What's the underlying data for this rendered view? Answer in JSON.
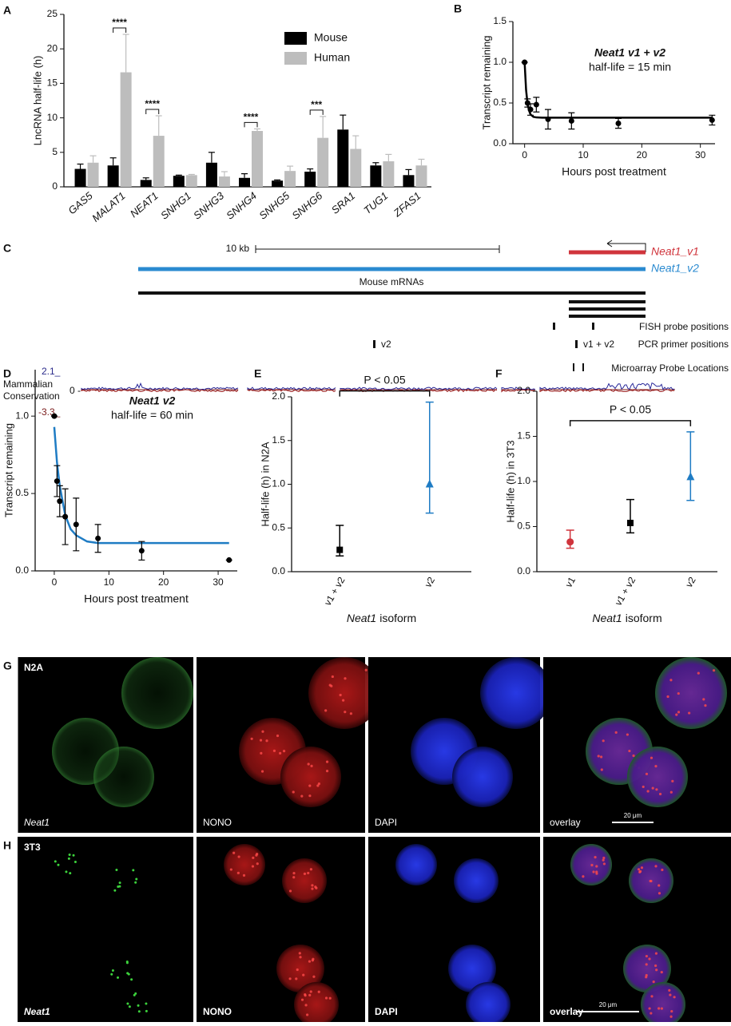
{
  "chart_data": [
    {
      "panel": "A",
      "type": "bar",
      "ylabel": "LncRNA half-life (h)",
      "categories": [
        "GAS5",
        "MALAT1",
        "NEAT1",
        "SNHG1",
        "SNHG3",
        "SNHG4",
        "SNHG5",
        "SNHG6",
        "SRA1",
        "TUG1",
        "ZFAS1"
      ],
      "series": [
        {
          "name": "Mouse",
          "color": "#000000",
          "values": [
            2.6,
            3.1,
            1.0,
            1.6,
            3.5,
            1.3,
            0.9,
            2.2,
            8.3,
            3.1,
            1.7
          ],
          "errors": [
            0.7,
            1.1,
            0.3,
            0.1,
            1.5,
            0.6,
            0.1,
            0.4,
            2.1,
            0.4,
            0.8
          ]
        },
        {
          "name": "Human",
          "color": "#bdbdbd",
          "values": [
            3.5,
            16.6,
            7.4,
            1.7,
            1.5,
            8.1,
            2.3,
            7.1,
            5.5,
            3.7,
            3.1
          ],
          "errors": [
            1.0,
            5.5,
            2.9,
            0.1,
            0.7,
            0.3,
            0.7,
            3.1,
            1.9,
            1.0,
            0.9
          ]
        }
      ],
      "ylim": [
        0,
        25
      ],
      "yticks": [
        0,
        5,
        10,
        15,
        20,
        25
      ],
      "legend": "top-right",
      "annotations": [
        {
          "label": "****",
          "category": "MALAT1"
        },
        {
          "label": "****",
          "category": "NEAT1"
        },
        {
          "label": "****",
          "category": "SNHG4"
        },
        {
          "label": "***",
          "category": "SNHG6"
        }
      ]
    },
    {
      "panel": "B",
      "type": "scatter",
      "title_italic": "Neat1 v1 + v2",
      "subtitle": "half-life = 15 min",
      "xlabel": "Hours post treatment",
      "ylabel": "Transcript remaining",
      "x": [
        0,
        0.5,
        1,
        2,
        4,
        8,
        16,
        32
      ],
      "values": [
        1.0,
        0.5,
        0.42,
        0.48,
        0.3,
        0.28,
        0.25,
        0.29
      ],
      "errors": [
        0,
        0.05,
        0.07,
        0.09,
        0.12,
        0.1,
        0.06,
        0.06
      ],
      "color": "#000000",
      "fit": {
        "color": "#000000",
        "x": [
          0,
          0.25,
          0.5,
          0.75,
          1,
          1.5,
          2,
          3,
          4,
          8,
          16,
          32
        ],
        "values": [
          1.0,
          0.66,
          0.49,
          0.41,
          0.36,
          0.33,
          0.323,
          0.32,
          0.32,
          0.32,
          0.32,
          0.32
        ]
      },
      "xlim": [
        -2,
        32.5
      ],
      "xticks": [
        0,
        10,
        20,
        30
      ],
      "ylim": [
        0,
        1.5
      ],
      "yticks": [
        {
          "value": 0,
          "label": "0.0"
        },
        0.5,
        {
          "value": 1,
          "label": "1.0"
        },
        1.5
      ]
    },
    {
      "panel": "D",
      "type": "scatter",
      "title_italic": "Neat1 v2",
      "subtitle": "half-life = 60 min",
      "xlabel": "Hours post treatment",
      "ylabel": "Transcript remaining",
      "x": [
        0,
        0.5,
        1,
        2,
        4,
        8,
        16,
        32
      ],
      "values": [
        1.0,
        0.58,
        0.45,
        0.35,
        0.3,
        0.21,
        0.13,
        0.07
      ],
      "errors": [
        0,
        0.1,
        0.1,
        0.18,
        0.17,
        0.09,
        0.06,
        0
      ],
      "color": "#000000",
      "fit": {
        "color": "#1f7cc4",
        "x": [
          0,
          0.5,
          1,
          2,
          3,
          4,
          6,
          8,
          12,
          16,
          32
        ],
        "values": [
          0.93,
          0.7,
          0.55,
          0.36,
          0.27,
          0.23,
          0.19,
          0.18,
          0.18,
          0.18,
          0.18
        ]
      },
      "xlim": [
        -3.5,
        33.5
      ],
      "xticks": [
        0,
        10,
        20,
        30
      ],
      "ylim": [
        0,
        1.3
      ],
      "yticks": [
        {
          "value": 0,
          "label": "0.0"
        },
        0.5,
        {
          "value": 1,
          "label": "1.0"
        }
      ]
    },
    {
      "panel": "E",
      "type": "point",
      "ylabel": "Half-life (h) in N2A",
      "xlabel": {
        "italic": "Neat1",
        "text": "isoform"
      },
      "categories": [
        "v1 + v2",
        "v2"
      ],
      "values": [
        0.25,
        1.0
      ],
      "lower": [
        0.18,
        0.67
      ],
      "upper": [
        0.53,
        1.94
      ],
      "colors": [
        "#000000",
        "#1f7cc4"
      ],
      "markers": [
        "square",
        "triangle"
      ],
      "ylim": [
        0,
        2
      ],
      "yticks": [
        {
          "value": 0,
          "label": "0.0"
        },
        0.5,
        {
          "value": 1,
          "label": "1.0"
        },
        1.5,
        {
          "value": 2,
          "label": "2.0"
        }
      ],
      "bracket": {
        "label": "P < 0.05",
        "from": "v1 + v2",
        "to": "v2"
      }
    },
    {
      "panel": "F",
      "type": "point",
      "ylabel": "Half-life (h) in 3T3",
      "xlabel": {
        "italic": "Neat1",
        "text": "isoform"
      },
      "categories": [
        "v1",
        "v1 + v2",
        "v2"
      ],
      "values": [
        0.33,
        0.54,
        1.05
      ],
      "lower": [
        0.26,
        0.43,
        0.79
      ],
      "upper": [
        0.46,
        0.8,
        1.55
      ],
      "colors": [
        "#d0343c",
        "#000000",
        "#1f7cc4"
      ],
      "markers": [
        "circle",
        "square",
        "triangle"
      ],
      "ylim": [
        0,
        2
      ],
      "yticks": [
        {
          "value": 0,
          "label": "0.0"
        },
        0.5,
        {
          "value": 1,
          "label": "1.0"
        },
        1.5,
        {
          "value": 2,
          "label": "2.0"
        }
      ],
      "bracket": {
        "label": "P < 0.05",
        "from": "v1",
        "to": "v2"
      }
    }
  ],
  "diagram": {
    "panel": "C",
    "scale_label": "10 kb",
    "isoform1": "Neat1_v1",
    "isoform2": "Neat1_v2",
    "mrna_label": "Mouse mRNAs",
    "tracks": [
      "FISH probe positions",
      "PCR primer positions",
      "Microarray Probe Locations"
    ],
    "primer_labels": [
      "v2",
      "v1 + v2"
    ],
    "conservation": {
      "label": [
        "Mammalian",
        "Conservation"
      ],
      "max": "2.1_",
      "zero": "0 -",
      "min": "-3.3_"
    }
  },
  "images": [
    {
      "panel": "G",
      "cell_line": "N2A",
      "channels": [
        "Neat1",
        "NONO",
        "DAPI",
        "overlay"
      ],
      "scale": "20 μm"
    },
    {
      "panel": "H",
      "cell_line": "3T3",
      "channels": [
        "Neat1",
        "NONO",
        "DAPI",
        "overlay"
      ],
      "scale": "20 μm"
    }
  ]
}
